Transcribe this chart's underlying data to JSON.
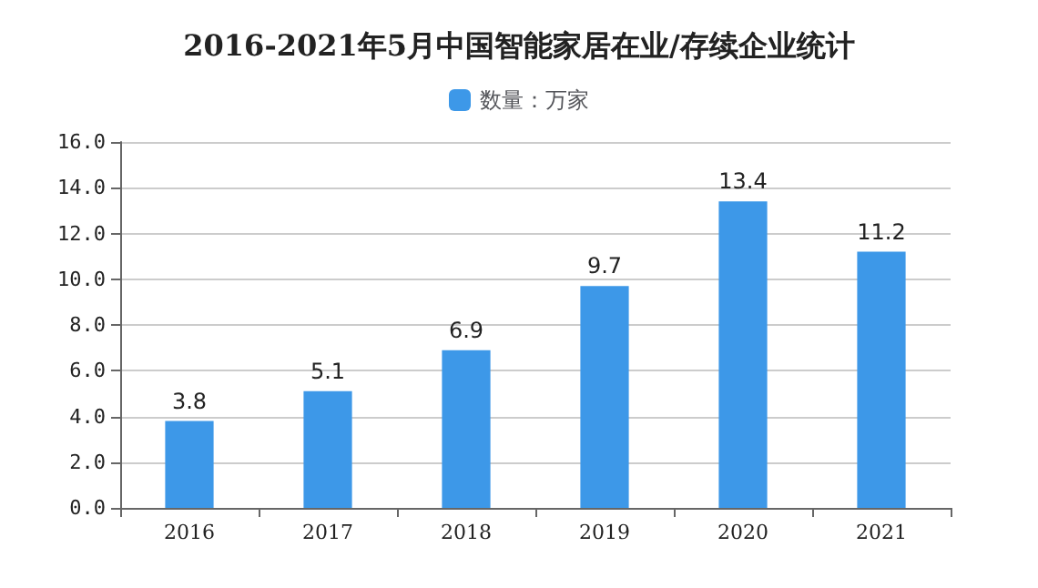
{
  "chart_data": {
    "type": "bar",
    "title": "2016-2021年5月中国智能家居在业/存续企业统计",
    "categories": [
      "2016",
      "2017",
      "2018",
      "2019",
      "2020",
      "2021"
    ],
    "series": [
      {
        "name": "数量：万家",
        "color": "#3d98e8",
        "values": [
          3.8,
          5.1,
          6.9,
          9.7,
          13.4,
          11.2
        ]
      }
    ],
    "ylim": [
      0,
      16
    ],
    "yticks": [
      {
        "value": 0,
        "label": "0.0"
      },
      {
        "value": 2,
        "label": "2.0"
      },
      {
        "value": 4,
        "label": "4.0"
      },
      {
        "value": 6,
        "label": "6.0"
      },
      {
        "value": 8,
        "label": "8.0"
      },
      {
        "value": 10,
        "label": "10.0"
      },
      {
        "value": 12,
        "label": "12.0"
      },
      {
        "value": 14,
        "label": "14.0"
      },
      {
        "value": 16,
        "label": "16.0"
      }
    ],
    "grid": "y",
    "legend": "top",
    "data_labels": true
  }
}
